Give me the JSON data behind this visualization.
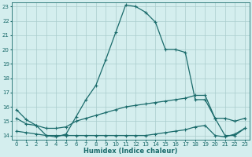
{
  "xlabel": "Humidex (Indice chaleur)",
  "xlim": [
    -0.5,
    23.5
  ],
  "ylim": [
    13.7,
    23.3
  ],
  "xticks": [
    0,
    1,
    2,
    3,
    4,
    5,
    6,
    7,
    8,
    9,
    10,
    11,
    12,
    13,
    14,
    15,
    16,
    17,
    18,
    19,
    20,
    21,
    22,
    23
  ],
  "yticks": [
    14,
    15,
    16,
    17,
    18,
    19,
    20,
    21,
    22,
    23
  ],
  "bg_color": "#d4eeee",
  "grid_color": "#aacccc",
  "line_color": "#1a6b6b",
  "line1_x": [
    0,
    1,
    2,
    3,
    4,
    5,
    6,
    7,
    8,
    9,
    10,
    11,
    12,
    13,
    14,
    15,
    16,
    17,
    18,
    19,
    20,
    21,
    22,
    23
  ],
  "line1_y": [
    15.8,
    15.1,
    14.7,
    14.0,
    13.9,
    14.1,
    15.3,
    16.5,
    17.5,
    19.3,
    21.2,
    23.1,
    23.0,
    22.6,
    21.9,
    20.0,
    20.0,
    19.8,
    16.5,
    16.5,
    15.2,
    14.0,
    14.0,
    14.5
  ],
  "line2_x": [
    0,
    1,
    2,
    3,
    4,
    5,
    6,
    7,
    8,
    9,
    10,
    11,
    12,
    13,
    14,
    15,
    16,
    17,
    18,
    19,
    20,
    21,
    22,
    23
  ],
  "line2_y": [
    15.2,
    14.8,
    14.7,
    14.5,
    14.5,
    14.6,
    15.0,
    15.2,
    15.4,
    15.6,
    15.8,
    16.0,
    16.1,
    16.2,
    16.3,
    16.4,
    16.5,
    16.6,
    16.8,
    16.8,
    15.2,
    15.2,
    15.0,
    15.2
  ],
  "line3_x": [
    0,
    1,
    2,
    3,
    4,
    5,
    6,
    7,
    8,
    9,
    10,
    11,
    12,
    13,
    14,
    15,
    16,
    17,
    18,
    19,
    20,
    21,
    22,
    23
  ],
  "line3_y": [
    14.3,
    14.2,
    14.1,
    14.0,
    14.0,
    14.0,
    14.0,
    14.0,
    14.0,
    14.0,
    14.0,
    14.0,
    14.0,
    14.0,
    14.1,
    14.2,
    14.3,
    14.4,
    14.6,
    14.7,
    14.0,
    13.9,
    14.1,
    14.5
  ]
}
